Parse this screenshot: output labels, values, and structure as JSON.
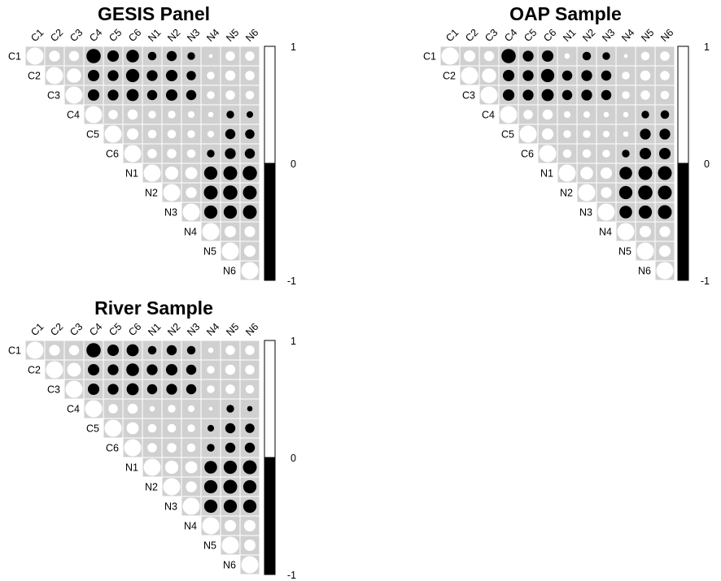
{
  "chart_data": [
    {
      "type": "heatmap",
      "title": "GESIS Panel",
      "variables": [
        "C1",
        "C2",
        "C3",
        "C4",
        "C5",
        "C6",
        "N1",
        "N2",
        "N3",
        "N4",
        "N5",
        "N6"
      ],
      "colorbar": {
        "ticks": [
          "1",
          "0",
          "-1"
        ],
        "range": [
          -1,
          1
        ],
        "positive_color": "#ffffff",
        "negative_color": "#000000"
      },
      "background_color": "#d0d0d0",
      "matrix_upper": [
        [
          1,
          0.4,
          0.35,
          -0.7,
          -0.45,
          -0.55,
          -0.25,
          -0.35,
          -0.2,
          0.05,
          0.3,
          0.3
        ],
        [
          1,
          0.7,
          -0.45,
          -0.4,
          -0.6,
          -0.4,
          -0.45,
          -0.3,
          0.2,
          0.35,
          0.3
        ],
        [
          1,
          -0.45,
          -0.4,
          -0.5,
          -0.35,
          -0.45,
          -0.35,
          0.2,
          0.3,
          0.25
        ],
        [
          1,
          0.3,
          0.35,
          0.2,
          0.2,
          0.15,
          0.1,
          -0.2,
          -0.15
        ],
        [
          1,
          0.45,
          0.25,
          0.25,
          0.2,
          0.15,
          -0.35,
          -0.3
        ],
        [
          1,
          0.3,
          0.3,
          0.25,
          -0.2,
          -0.4,
          -0.35
        ],
        [
          1,
          0.6,
          0.5,
          -0.6,
          -0.65,
          -0.7
        ],
        [
          1,
          0.4,
          -0.65,
          -0.7,
          -0.65
        ],
        [
          1,
          -0.6,
          -0.6,
          -0.65
        ],
        [
          1,
          0.45,
          0.4
        ],
        [
          1,
          0.45
        ],
        [
          1
        ]
      ]
    },
    {
      "type": "heatmap",
      "title": "OAP Sample",
      "variables": [
        "C1",
        "C2",
        "C3",
        "C4",
        "C5",
        "C6",
        "N1",
        "N2",
        "N3",
        "N4",
        "N5",
        "N6"
      ],
      "colorbar": {
        "ticks": [
          "1",
          "0",
          "-1"
        ],
        "range": [
          -1,
          1
        ],
        "positive_color": "#ffffff",
        "negative_color": "#000000"
      },
      "background_color": "#d0d0d0",
      "matrix_upper": [
        [
          1,
          0.45,
          0.35,
          -0.7,
          -0.4,
          -0.45,
          0.1,
          -0.25,
          -0.2,
          0.05,
          0.25,
          0.3
        ],
        [
          1,
          0.7,
          -0.45,
          -0.4,
          -0.6,
          -0.35,
          -0.4,
          -0.35,
          0.2,
          0.35,
          0.3
        ],
        [
          1,
          -0.45,
          -0.4,
          -0.5,
          -0.35,
          -0.4,
          -0.35,
          0.2,
          0.3,
          0.25
        ],
        [
          1,
          0.3,
          0.35,
          0.15,
          0.15,
          0.1,
          0.1,
          -0.2,
          -0.25
        ],
        [
          1,
          0.45,
          0.2,
          0.2,
          0.15,
          0.1,
          -0.4,
          -0.4
        ],
        [
          1,
          0.25,
          0.25,
          0.2,
          -0.2,
          -0.45,
          -0.45
        ],
        [
          1,
          0.55,
          0.45,
          -0.55,
          -0.65,
          -0.65
        ],
        [
          1,
          0.4,
          -0.6,
          -0.7,
          -0.65
        ],
        [
          1,
          -0.55,
          -0.6,
          -0.65
        ],
        [
          1,
          0.45,
          0.4
        ],
        [
          1,
          0.45
        ],
        [
          1
        ]
      ]
    },
    {
      "type": "heatmap",
      "title": "River Sample",
      "variables": [
        "C1",
        "C2",
        "C3",
        "C4",
        "C5",
        "C6",
        "N1",
        "N2",
        "N3",
        "N4",
        "N5",
        "N6"
      ],
      "colorbar": {
        "ticks": [
          "1",
          "0",
          "-1"
        ],
        "range": [
          -1,
          1
        ],
        "positive_color": "#ffffff",
        "negative_color": "#000000"
      },
      "background_color": "#d0d0d0",
      "matrix_upper": [
        [
          1,
          0.4,
          0.35,
          -0.7,
          -0.45,
          -0.5,
          -0.25,
          -0.35,
          -0.25,
          0.1,
          0.3,
          0.3
        ],
        [
          1,
          0.65,
          -0.45,
          -0.4,
          -0.55,
          -0.4,
          -0.45,
          -0.35,
          0.2,
          0.35,
          0.3
        ],
        [
          1,
          -0.45,
          -0.4,
          -0.5,
          -0.35,
          -0.4,
          -0.35,
          0.2,
          0.3,
          0.25
        ],
        [
          1,
          0.3,
          0.35,
          0.1,
          0.2,
          0.15,
          0.05,
          -0.2,
          -0.1
        ],
        [
          1,
          0.5,
          0.25,
          0.25,
          0.2,
          -0.15,
          -0.35,
          -0.3
        ],
        [
          1,
          0.3,
          0.3,
          0.25,
          -0.2,
          -0.35,
          -0.35
        ],
        [
          1,
          0.6,
          0.5,
          -0.55,
          -0.6,
          -0.65
        ],
        [
          1,
          0.4,
          -0.6,
          -0.65,
          -0.6
        ],
        [
          1,
          -0.6,
          -0.6,
          -0.6
        ],
        [
          1,
          0.45,
          0.45
        ],
        [
          1,
          0.45
        ],
        [
          1
        ]
      ]
    }
  ]
}
